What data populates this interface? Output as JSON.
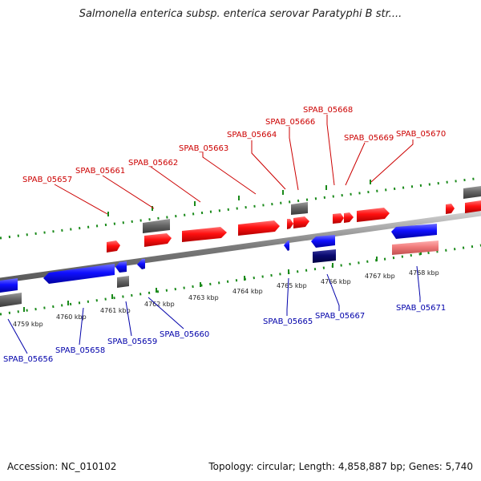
{
  "title": "Salmonella enterica subsp. enterica serovar Paratyphi B str....",
  "footer": {
    "accession": "Accession: NC_010102",
    "summary": "Topology: circular; Length: 4,858,887 bp; Genes: 5,740"
  },
  "colors": {
    "forward": "#ff0000",
    "reverse": "#0000ff",
    "rna": "#777777",
    "dark_reverse": "#00007a",
    "pseudo": "#f08080",
    "tick": "#1a8a1a",
    "forward_label": "#cc0000",
    "reverse_label": "#0000aa",
    "backbone": "#888888"
  },
  "scale_labels": [
    "4759 kbp",
    "4760 kbp",
    "4761 kbp",
    "4762 kbp",
    "4763 kbp",
    "4764 kbp",
    "4765 kbp",
    "4766 kbp",
    "4767 kbp",
    "4768 kbp"
  ],
  "forward_labels": [
    "SPAB_05657",
    "SPAB_05661",
    "SPAB_05662",
    "SPAB_05663",
    "SPAB_05664",
    "SPAB_05666",
    "SPAB_05668",
    "SPAB_05669",
    "SPAB_05670"
  ],
  "reverse_labels": [
    "SPAB_05656",
    "SPAB_05658",
    "SPAB_05659",
    "SPAB_05660",
    "SPAB_05665",
    "SPAB_05667",
    "SPAB_05671"
  ]
}
